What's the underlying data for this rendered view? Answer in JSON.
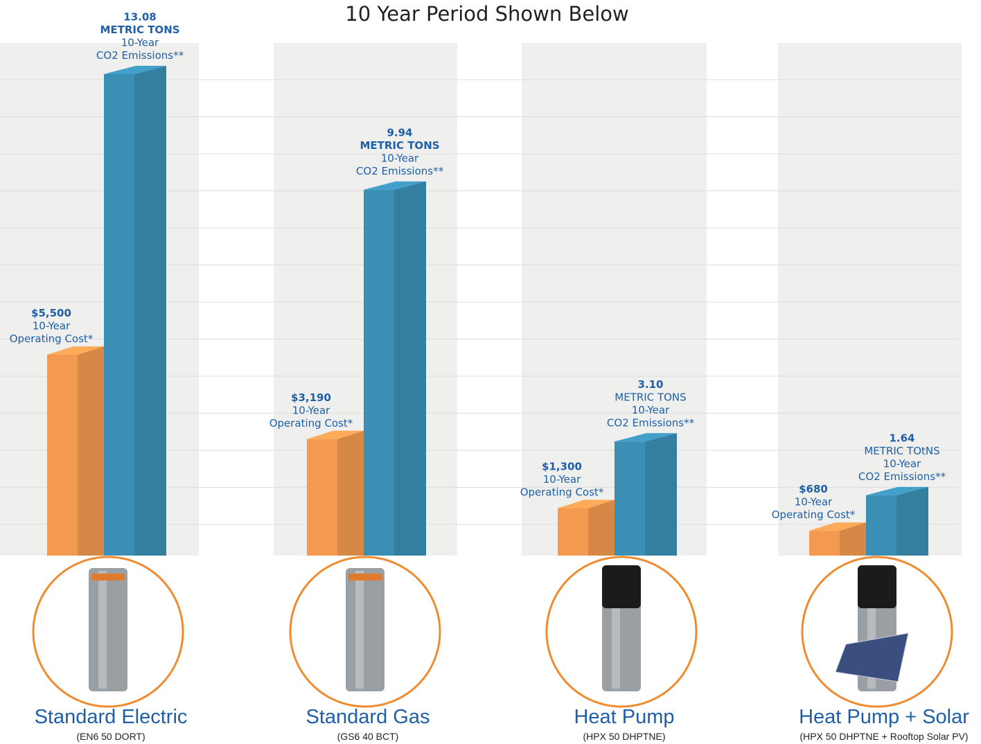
{
  "chart_data": {
    "type": "bar3d",
    "title": "10 Year Period Shown Below",
    "categories": [
      "Standard Electric",
      "Standard Gas",
      "Heat Pump",
      "Heat Pump + Solar"
    ],
    "models": [
      "(EN6 50 DORT)",
      "(GS6 40 BCT)",
      "(HPX 50 DHPTNE)",
      "(HPX 50 DHPTNE + Rooftop Solar PV)"
    ],
    "series": [
      {
        "color": "#f39a50",
        "values": [
          5500,
          3190,
          1300,
          680
        ],
        "value_labels": [
          "$5,500",
          "$3,190",
          "$1,300",
          "$680"
        ],
        "captions": [
          [
            "10-Year",
            "Operating Cost*"
          ],
          [
            "10-Year",
            "Operating Cost*"
          ],
          [
            "10-Year",
            "Operating Cost*"
          ],
          [
            "10-Year",
            "Operating Cost*"
          ]
        ]
      },
      {
        "color": "#3b8fb5",
        "values": [
          13.08,
          9.94,
          3.1,
          1.64
        ],
        "value_labels": [
          "13.08",
          "9.94",
          "3.10",
          "1.64"
        ],
        "captions": [
          [
            "METRIC TONS",
            "10-Year",
            "CO2 Emissions**"
          ],
          [
            "METRIC TONS",
            "10-Year",
            "CO2 Emissions**"
          ],
          [
            "METRIC TONS",
            "10-Year",
            "CO2 Emissions**"
          ],
          [
            "METRIC TOtNS",
            "10-Year",
            "CO2 Emissions**"
          ]
        ]
      }
    ]
  }
}
